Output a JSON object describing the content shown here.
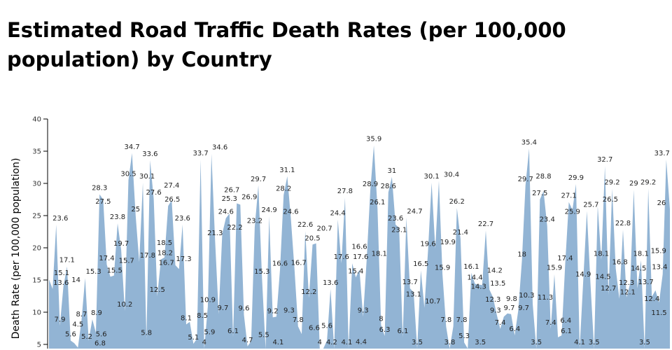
{
  "chart_data": {
    "type": "area",
    "title": "Estimated Road Traffic Death Rates (per 100,000 population) by Country",
    "ylabel": "Death Rate (per 100,000 population)",
    "xlabel": "",
    "ylim": [
      0,
      40
    ],
    "yticks": [
      5,
      10,
      15,
      20,
      25,
      30,
      35,
      40
    ],
    "fill_color": "#92b4d4",
    "values": [
      15.1,
      13.6,
      23.6,
      7.9,
      14,
      17.1,
      5.6,
      5.2,
      4.5,
      8.7,
      15.3,
      5.6,
      8.9,
      6.8,
      28.3,
      27.5,
      17.4,
      15.5,
      15.7,
      23.8,
      19.7,
      10.2,
      30.5,
      34.7,
      25,
      17.8,
      30.1,
      5.8,
      33.6,
      27.6,
      12.5,
      18.2,
      18.5,
      26.5,
      27.4,
      17.3,
      16.7,
      23.6,
      8.1,
      8.5,
      5.1,
      5.9,
      33.7,
      4,
      10.9,
      34.6,
      21.3,
      9.7,
      22.2,
      24.6,
      25.3,
      6.1,
      26.9,
      26.7,
      9.6,
      4.7,
      5.5,
      23.2,
      29.7,
      15.3,
      4.1,
      24.9,
      9.2,
      9.3,
      16.6,
      28.2,
      31.1,
      24.6,
      16.7,
      7.8,
      6.6,
      22.6,
      12.2,
      20.5,
      20.7,
      4,
      4.2,
      5.6,
      13.6,
      4.1,
      24.4,
      17.6,
      27.8,
      4.4,
      17.6,
      15.4,
      16.6,
      9.3,
      18.1,
      28.9,
      35.9,
      26.1,
      8,
      6.3,
      28.6,
      31,
      23.6,
      23.1,
      6.1,
      24.7,
      13.7,
      13.1,
      3.5,
      16.5,
      10.7,
      19.6,
      30.1,
      19.9,
      30.4,
      15.9,
      7.8,
      3.8,
      7.8,
      26.2,
      21.4,
      5.3,
      3.5,
      16.1,
      14.4,
      14.3,
      14.2,
      22.7,
      13.5,
      12.3,
      9.7,
      7.4,
      9.3,
      9.8,
      9.7,
      6.4,
      10.3,
      18,
      29.7,
      35.4,
      11.3,
      3.5,
      27.5,
      28.8,
      23.4,
      7.4,
      15.9,
      6.1,
      6.4,
      17.4,
      27.1,
      25.9,
      29.9,
      4.1,
      14.9,
      25.7,
      14.5,
      3.5,
      26.5,
      18.1,
      32.7,
      12.7,
      29.2,
      16.8,
      12.1,
      22.8,
      12.3,
      14.5,
      29,
      13.7,
      18.1,
      3.5,
      29.2,
      12.4,
      13.4,
      11.5,
      15.9,
      33.7,
      26
    ]
  }
}
